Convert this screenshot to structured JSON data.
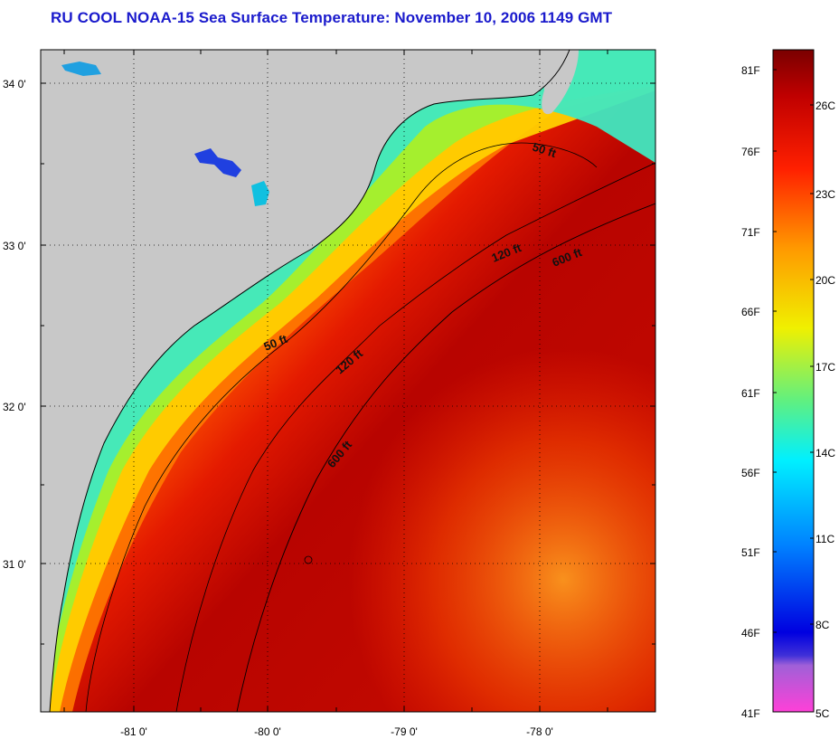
{
  "title": "RU COOL  NOAA-15  Sea Surface Temperature:  November 10, 2006 1149 GMT",
  "map": {
    "lat_labels": [
      "34 0'",
      "33 0'",
      "32 0'",
      "31 0'"
    ],
    "lon_labels": [
      "-81 0'",
      "-80 0'",
      "-79 0'",
      "-78 0'"
    ],
    "contour_labels": [
      "50 ft",
      "50 ft",
      "120 ft",
      "120 ft",
      "600 ft",
      "600 ft"
    ]
  },
  "colorbar": {
    "fahrenheit_labels": [
      "81F",
      "76F",
      "71F",
      "66F",
      "61F",
      "56F",
      "51F",
      "46F",
      "41F"
    ],
    "celsius_labels": [
      "26C",
      "23C",
      "20C",
      "17C",
      "14C",
      "11C",
      "8C",
      "5C"
    ],
    "range_fahrenheit": [
      41,
      83
    ],
    "colors": [
      "#ff40d8",
      "#8a4cd8",
      "#0000e0",
      "#0080ff",
      "#00f0ff",
      "#60f080",
      "#f0f000",
      "#ff9900",
      "#ff2000",
      "#c00000",
      "#7a0000"
    ]
  }
}
